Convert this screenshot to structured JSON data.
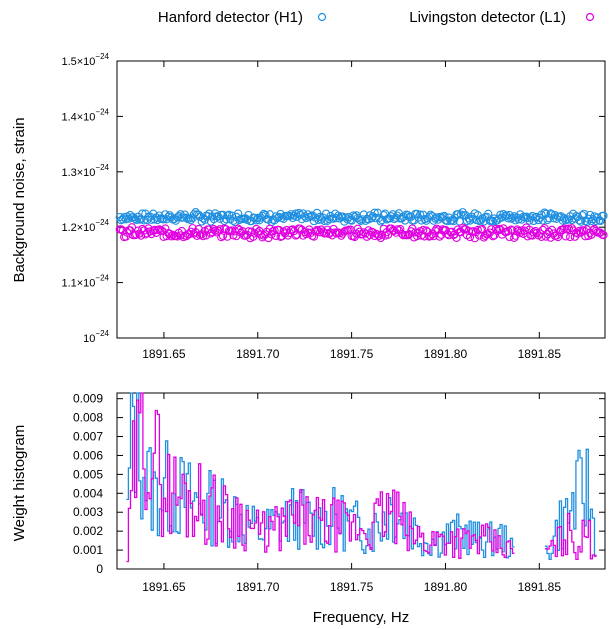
{
  "chart_data": [
    {
      "type": "scatter",
      "ylabel": "Background noise, strain",
      "xlim": [
        1891.625,
        1891.885
      ],
      "ylim": [
        1.0,
        1.5
      ],
      "y_scale_note": "×10^-24",
      "x_ticks": [
        "1891.65",
        "1891.70",
        "1891.75",
        "1891.80",
        "1891.85"
      ],
      "y_ticks": [
        {
          "v": 1.0,
          "mant": "",
          "exp": "−24",
          "base": "10"
        },
        {
          "v": 1.1,
          "mant": "1.1",
          "exp": "−24",
          "base": "10"
        },
        {
          "v": 1.2,
          "mant": "1.2",
          "exp": "−24",
          "base": "10"
        },
        {
          "v": 1.3,
          "mant": "1.3",
          "exp": "−24",
          "base": "10"
        },
        {
          "v": 1.4,
          "mant": "1.4",
          "exp": "−24",
          "base": "10"
        },
        {
          "v": 1.5,
          "mant": "1.5",
          "exp": "−24",
          "base": "10"
        }
      ],
      "grid": false,
      "legend_placement": "top",
      "series": [
        {
          "name": "Hanford detector (H1)",
          "color": "#1f8fe0",
          "baseline": 1.218,
          "jitter": 0.007,
          "n": 160
        },
        {
          "name": "Livingston detector (L1)",
          "color": "#e000e0",
          "baseline": 1.19,
          "jitter": 0.008,
          "n": 160
        }
      ]
    },
    {
      "type": "line",
      "xlabel": "Frequency, Hz",
      "ylabel": "Weight histogram",
      "xlim": [
        1891.625,
        1891.885
      ],
      "ylim": [
        0,
        0.0093
      ],
      "x_ticks": [
        "1891.65",
        "1891.70",
        "1891.75",
        "1891.80",
        "1891.85"
      ],
      "y_ticks": [
        "0",
        "0.001",
        "0.002",
        "0.003",
        "0.004",
        "0.005",
        "0.006",
        "0.007",
        "0.008",
        "0.009"
      ],
      "grid": false,
      "series": [
        {
          "name": "Hanford detector (H1)",
          "color": "#1f8fe0",
          "x": [
            1891.63,
            1891.633,
            1891.636,
            1891.64,
            1891.645,
            1891.65,
            1891.66,
            1891.67,
            1891.68,
            1891.69,
            1891.7,
            1891.71,
            1891.72,
            1891.73,
            1891.74,
            1891.75,
            1891.76,
            1891.77,
            1891.78,
            1891.79,
            1891.8,
            1891.81,
            1891.82,
            1891.83,
            1891.835,
            1891.855,
            1891.86,
            1891.865,
            1891.87,
            1891.875,
            1891.88
          ],
          "y": [
            0.003,
            0.0088,
            0.0075,
            0.005,
            0.004,
            0.0045,
            0.004,
            0.0035,
            0.0033,
            0.003,
            0.002,
            0.0025,
            0.003,
            0.0025,
            0.0028,
            0.0025,
            0.002,
            0.0035,
            0.0025,
            0.0015,
            0.0018,
            0.002,
            0.0015,
            0.0018,
            0.001,
            0.001,
            0.0025,
            0.003,
            0.004,
            0.0045,
            0.0015
          ]
        },
        {
          "name": "Livingston detector (L1)",
          "color": "#e000e0",
          "x": [
            1891.63,
            1891.633,
            1891.636,
            1891.64,
            1891.645,
            1891.65,
            1891.66,
            1891.67,
            1891.68,
            1891.69,
            1891.7,
            1891.71,
            1891.72,
            1891.73,
            1891.74,
            1891.75,
            1891.76,
            1891.77,
            1891.78,
            1891.79,
            1891.8,
            1891.81,
            1891.82,
            1891.83,
            1891.835,
            1891.855,
            1891.86,
            1891.865,
            1891.87,
            1891.875,
            1891.88
          ],
          "y": [
            0.0005,
            0.005,
            0.0065,
            0.0086,
            0.006,
            0.0045,
            0.004,
            0.0038,
            0.003,
            0.003,
            0.002,
            0.0022,
            0.0028,
            0.0025,
            0.0025,
            0.0022,
            0.0024,
            0.0032,
            0.002,
            0.0015,
            0.0018,
            0.0015,
            0.0016,
            0.0012,
            0.001,
            0.001,
            0.0015,
            0.002,
            0.0013,
            0.002,
            0.0008
          ]
        }
      ]
    }
  ]
}
